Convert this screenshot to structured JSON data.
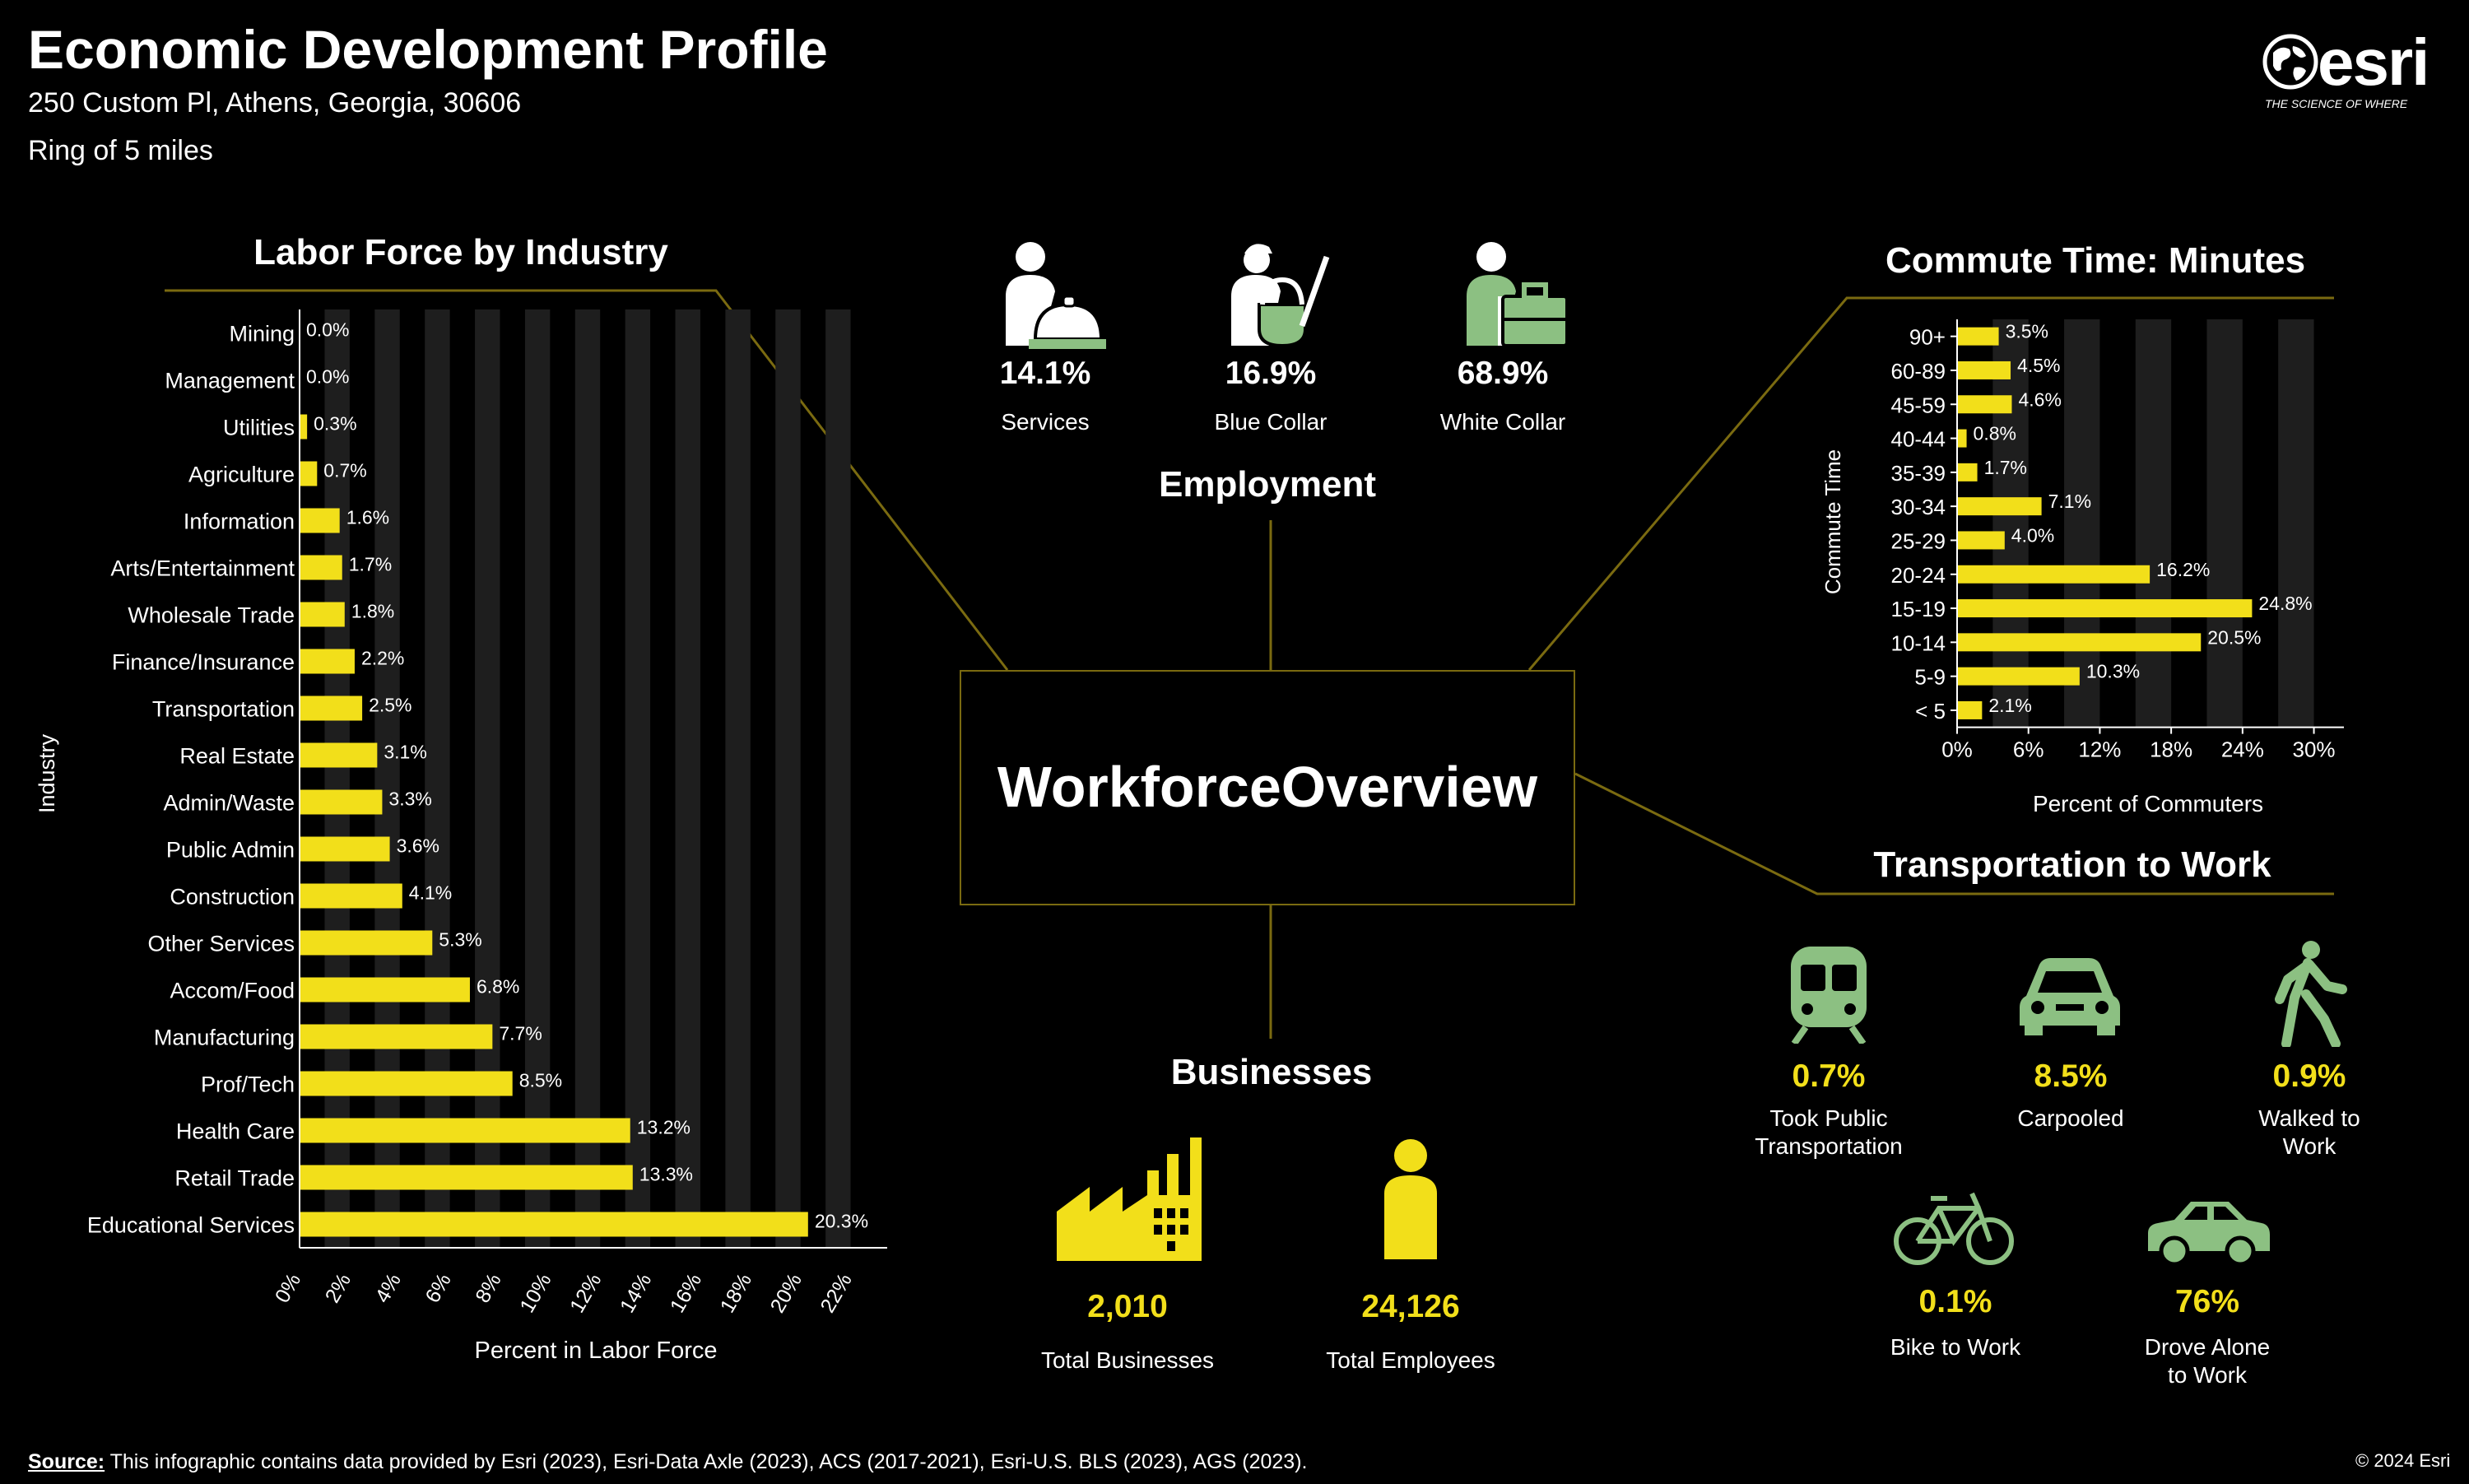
{
  "header": {
    "title": "Economic Development Profile",
    "address": "250 Custom Pl, Athens, Georgia, 30606",
    "ring": "Ring of 5 miles"
  },
  "logo": {
    "name": "esri",
    "tagline": "THE SCIENCE OF WHERE"
  },
  "colors": {
    "accent": "#f2df1a",
    "green": "#8cc082",
    "line": "#7a6a10",
    "stripe": "#1e1e1e"
  },
  "center": {
    "title": "WorkforceOverview"
  },
  "employment": {
    "title": "Employment",
    "items": [
      {
        "value": "14.1%",
        "label": "Services",
        "icon": "services-worker-icon"
      },
      {
        "value": "16.9%",
        "label": "Blue Collar",
        "icon": "blue-collar-worker-icon"
      },
      {
        "value": "68.9%",
        "label": "White Collar",
        "icon": "white-collar-worker-icon"
      }
    ]
  },
  "businesses": {
    "title": "Businesses",
    "total_businesses": {
      "value": "2,010",
      "label": "Total Businesses",
      "icon": "factory-icon"
    },
    "total_employees": {
      "value": "24,126",
      "label": "Total Employees",
      "icon": "person-icon"
    }
  },
  "transport": {
    "title": "Transportation to Work",
    "items": [
      {
        "value": "0.7%",
        "label": "Took Public Transportation",
        "icon": "train-icon"
      },
      {
        "value": "8.5%",
        "label": "Carpooled",
        "icon": "carpool-car-icon"
      },
      {
        "value": "0.9%",
        "label": "Walked to Work",
        "icon": "walking-person-icon"
      },
      {
        "value": "0.1%",
        "label": "Bike to Work",
        "icon": "bicycle-icon"
      },
      {
        "value": "76%",
        "label": "Drove Alone to Work",
        "icon": "car-icon"
      }
    ]
  },
  "chart_data": [
    {
      "type": "bar",
      "orientation": "horizontal",
      "title": "Labor Force by Industry",
      "xlabel": "Percent in Labor Force",
      "ylabel": "Industry",
      "xlim": [
        0,
        23
      ],
      "xticks": [
        "0%",
        "2%",
        "4%",
        "6%",
        "8%",
        "10%",
        "12%",
        "14%",
        "16%",
        "18%",
        "20%",
        "22%"
      ],
      "categories": [
        "Mining",
        "Management",
        "Utilities",
        "Agriculture",
        "Information",
        "Arts/Entertainment",
        "Wholesale Trade",
        "Finance/Insurance",
        "Transportation",
        "Real Estate",
        "Admin/Waste",
        "Public Admin",
        "Construction",
        "Other Services",
        "Accom/Food",
        "Manufacturing",
        "Prof/Tech",
        "Health Care",
        "Retail Trade",
        "Educational Services"
      ],
      "values": [
        0.0,
        0.0,
        0.3,
        0.7,
        1.6,
        1.7,
        1.8,
        2.2,
        2.5,
        3.1,
        3.3,
        3.6,
        4.1,
        5.3,
        6.8,
        7.7,
        8.5,
        13.2,
        13.3,
        20.3
      ],
      "labels": [
        "0.0%",
        "0.0%",
        "0.3%",
        "0.7%",
        "1.6%",
        "1.7%",
        "1.8%",
        "2.2%",
        "2.5%",
        "3.1%",
        "3.3%",
        "3.6%",
        "4.1%",
        "5.3%",
        "6.8%",
        "7.7%",
        "8.5%",
        "13.2%",
        "13.3%",
        "20.3%"
      ]
    },
    {
      "type": "bar",
      "orientation": "horizontal",
      "title": "Commute Time: Minutes",
      "xlabel": "Percent of Commuters",
      "ylabel": "Commute Time",
      "xlim": [
        0,
        31
      ],
      "xticks": [
        "0%",
        "6%",
        "12%",
        "18%",
        "24%",
        "30%"
      ],
      "categories": [
        "90+",
        "60-89",
        "45-59",
        "40-44",
        "35-39",
        "30-34",
        "25-29",
        "20-24",
        "15-19",
        "10-14",
        "5-9",
        "< 5"
      ],
      "values": [
        3.5,
        4.5,
        4.6,
        0.8,
        1.7,
        7.1,
        4.0,
        16.2,
        24.8,
        20.5,
        10.3,
        2.1
      ],
      "labels": [
        "3.5%",
        "4.5%",
        "4.6%",
        "0.8%",
        "1.7%",
        "7.1%",
        "4.0%",
        "16.2%",
        "24.8%",
        "20.5%",
        "10.3%",
        "2.1%"
      ]
    }
  ],
  "footer": {
    "source_label": "Source:",
    "source_text": " This infographic contains data provided by Esri (2023), Esri-Data Axle (2023), ACS (2017-2021), Esri-U.S. BLS (2023), AGS (2023).",
    "copyright": "© 2024 Esri"
  }
}
